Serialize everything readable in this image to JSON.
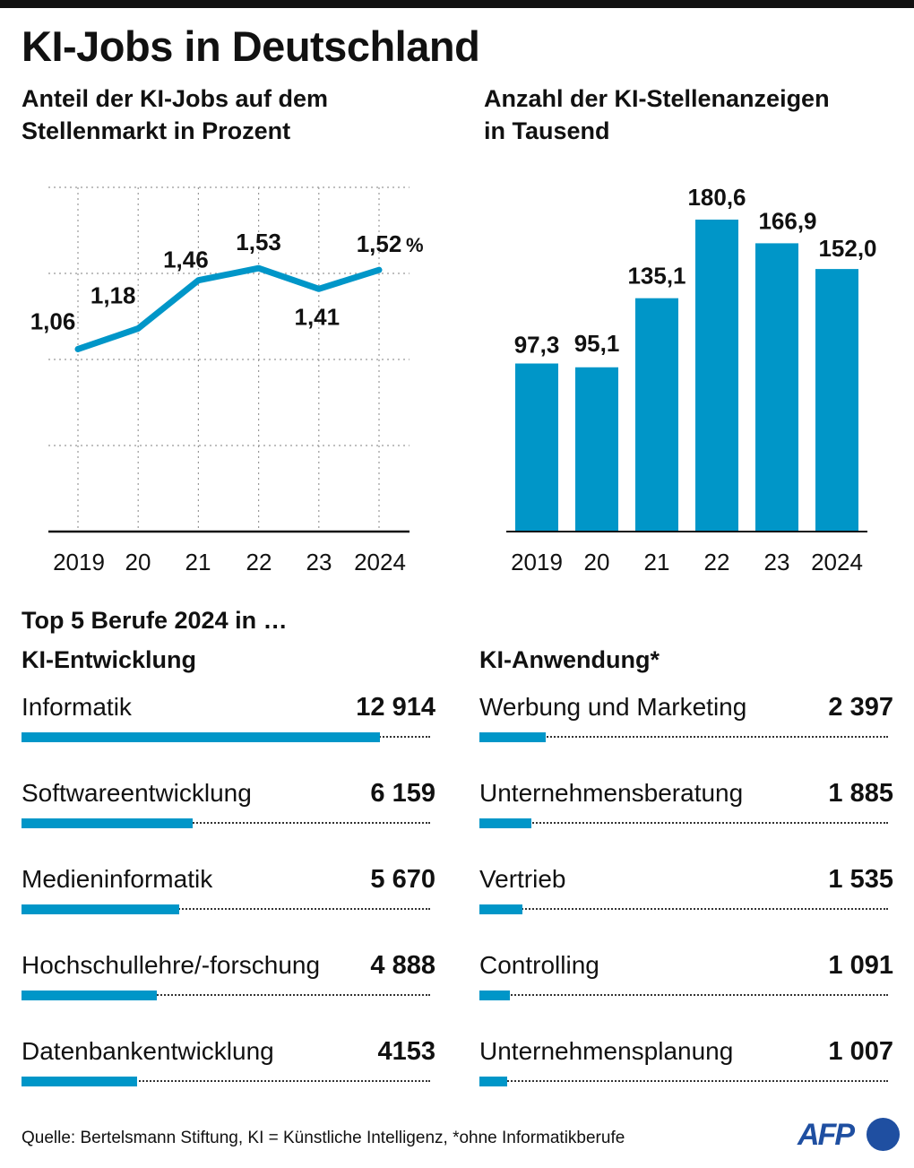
{
  "title": "KI-Jobs in Deutschland",
  "colors": {
    "accent": "#0096c8",
    "text": "#111111",
    "grid": "#999999",
    "logo": "#1f4fa1"
  },
  "chart_data": [
    {
      "type": "line",
      "title": "Anteil der KI-Jobs auf dem Stellenmarkt in Prozent",
      "title_lines": [
        "Anteil der KI-Jobs auf dem",
        "Stellenmarkt in Prozent"
      ],
      "categories": [
        "2019",
        "20",
        "21",
        "22",
        "23",
        "2024"
      ],
      "values": [
        1.06,
        1.18,
        1.46,
        1.53,
        1.41,
        1.52
      ],
      "data_labels": [
        "1,06",
        "1,18",
        "1,46",
        "1,53",
        "1,41",
        "1,52"
      ],
      "unit_label": "%",
      "xlabel": "",
      "ylabel": "",
      "ylim": [
        0,
        2.0
      ],
      "grid": true,
      "gridlines": [
        0.5,
        1.0,
        1.5,
        2.0
      ]
    },
    {
      "type": "bar",
      "title": "Anzahl der KI-Stellenanzeigen in Tausend",
      "title_lines": [
        "Anzahl der KI-Stellenanzeigen",
        "in Tausend"
      ],
      "categories": [
        "2019",
        "20",
        "21",
        "22",
        "23",
        "2024"
      ],
      "values": [
        97.3,
        95.1,
        135.1,
        180.6,
        166.9,
        152.0
      ],
      "data_labels": [
        "97,3",
        "95,1",
        "135,1",
        "180,6",
        "166,9",
        "152,0"
      ],
      "xlabel": "",
      "ylabel": "",
      "ylim": [
        0,
        200
      ],
      "grid": false
    },
    {
      "type": "bar",
      "orientation": "horizontal",
      "title": "Top 5 Berufe 2024 in … KI-Entwicklung",
      "categories": [
        "Informatik",
        "Softwareentwicklung",
        "Medieninformatik",
        "Hochschullehre/-forschung",
        "Datenbankentwicklung"
      ],
      "values": [
        12914,
        6159,
        5670,
        4888,
        4153
      ],
      "data_labels": [
        "12 914",
        "6 159",
        "5 670",
        "4 888",
        "4153"
      ],
      "xlim": [
        0,
        14700
      ]
    },
    {
      "type": "bar",
      "orientation": "horizontal",
      "title": "Top 5 Berufe 2024 in … KI-Anwendung*",
      "categories": [
        "Werbung und Marketing",
        "Unternehmensberatung",
        "Vertrieb",
        "Controlling",
        "Unternehmensplanung"
      ],
      "values": [
        2397,
        1885,
        1535,
        1091,
        1007
      ],
      "data_labels": [
        "2 397",
        "1 885",
        "1 535",
        "1 091",
        "1 007"
      ],
      "xlim": [
        0,
        14700
      ]
    }
  ],
  "section": {
    "title": "Top 5 Berufe 2024 in …",
    "left_title": "KI-Entwicklung",
    "right_title": "KI-Anwendung*"
  },
  "footer": {
    "source": "Quelle: Bertelsmann Stiftung, KI = Künstliche Intelligenz, *ohne Informatikberufe",
    "logo_text": "AFP",
    "logo_icon": "afp-logo-dot"
  }
}
